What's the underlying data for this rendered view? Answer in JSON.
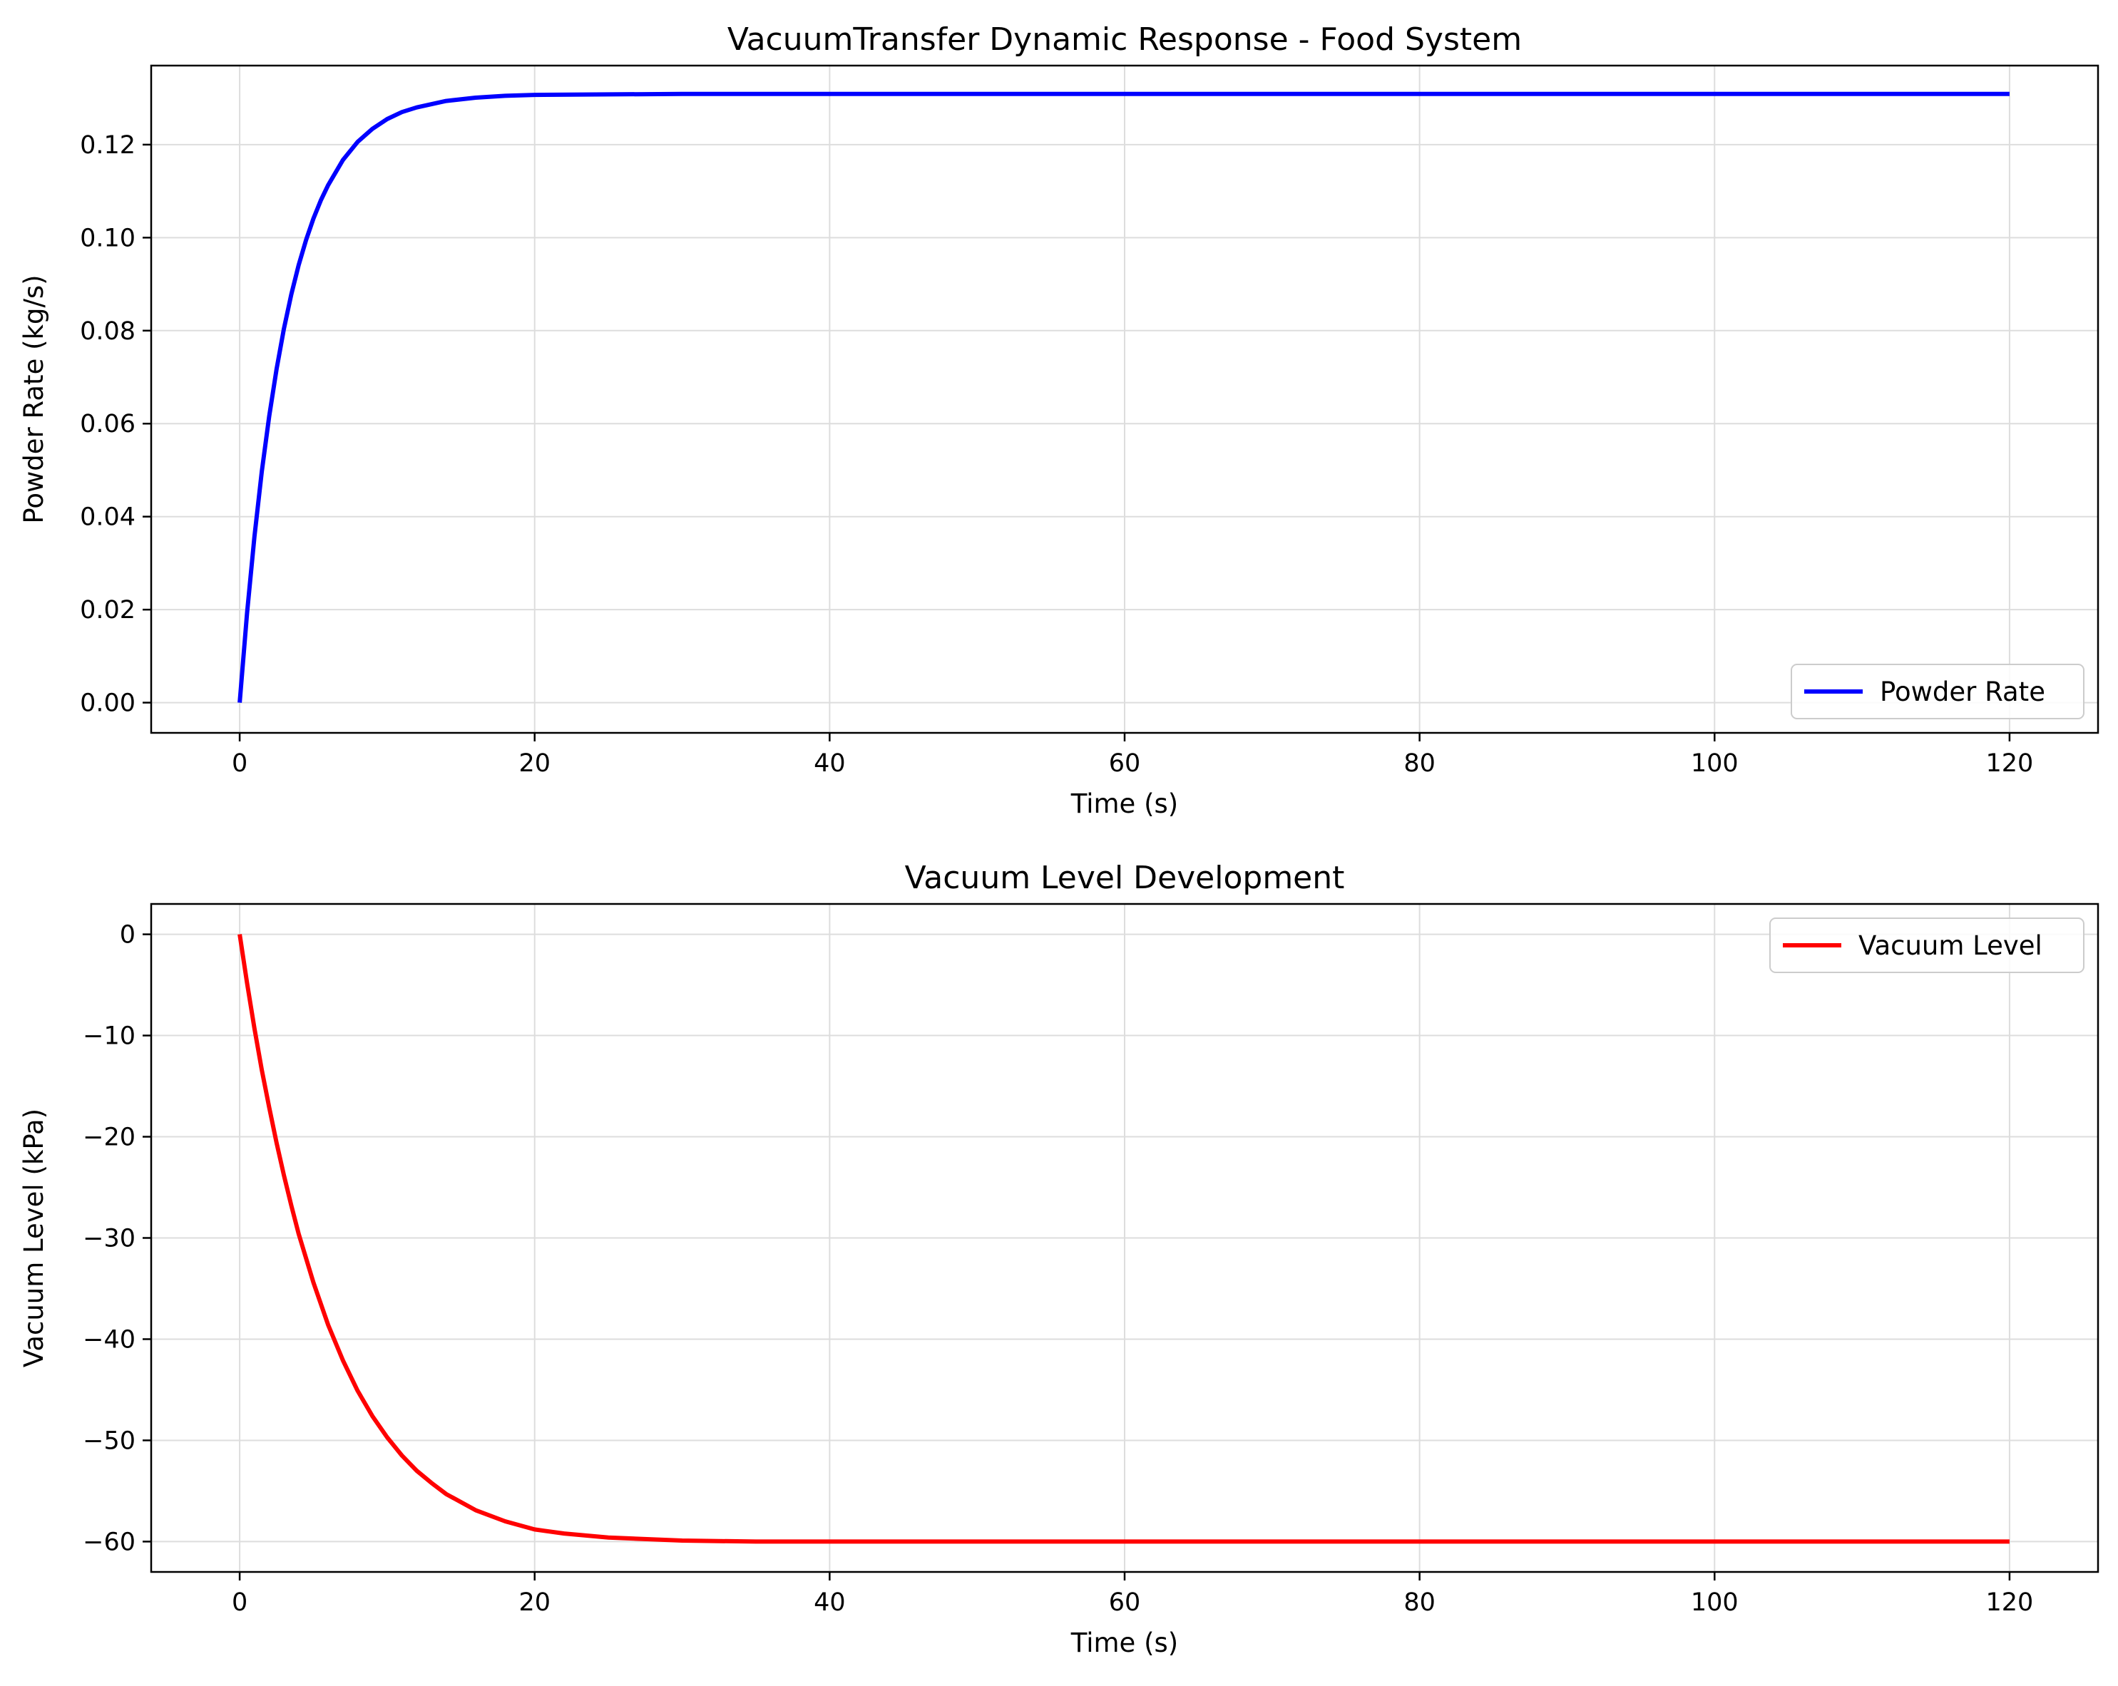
{
  "chart_data": [
    {
      "type": "line",
      "title": "VacuumTransfer Dynamic Response - Food System",
      "xlabel": "Time (s)",
      "ylabel": "Powder Rate (kg/s)",
      "xlim": [
        -6,
        126
      ],
      "ylim": [
        -0.0065,
        0.137
      ],
      "xticks": [
        0,
        20,
        40,
        60,
        80,
        100,
        120
      ],
      "xtick_labels": [
        "0",
        "20",
        "40",
        "60",
        "80",
        "100",
        "120"
      ],
      "yticks": [
        0,
        0.02,
        0.04,
        0.06,
        0.08,
        0.1,
        0.12
      ],
      "ytick_labels": [
        "0.00",
        "0.02",
        "0.04",
        "0.06",
        "0.08",
        "0.10",
        "0.12"
      ],
      "grid": true,
      "legend_position": "lower-right",
      "series": [
        {
          "name": "Powder Rate",
          "color": "#0000ff",
          "x": [
            0,
            0.5,
            1,
            1.5,
            2,
            2.5,
            3,
            3.5,
            4,
            4.5,
            5,
            5.5,
            6,
            7,
            8,
            9,
            10,
            11,
            12,
            14,
            16,
            18,
            20,
            25,
            30,
            40,
            60,
            80,
            100,
            120
          ],
          "y": [
            0,
            0.0192,
            0.0357,
            0.0497,
            0.0616,
            0.0717,
            0.0804,
            0.0878,
            0.0941,
            0.0995,
            0.1041,
            0.108,
            0.1113,
            0.1167,
            0.1206,
            0.1234,
            0.1255,
            0.127,
            0.128,
            0.1294,
            0.1301,
            0.1305,
            0.1307,
            0.1308,
            0.1309,
            0.1309,
            0.1309,
            0.1309,
            0.1309,
            0.1309
          ]
        }
      ]
    },
    {
      "type": "line",
      "title": "Vacuum Level Development",
      "xlabel": "Time (s)",
      "ylabel": "Vacuum Level (kPa)",
      "xlim": [
        -6,
        126
      ],
      "ylim": [
        -63,
        3
      ],
      "xticks": [
        0,
        20,
        40,
        60,
        80,
        100,
        120
      ],
      "xtick_labels": [
        "0",
        "20",
        "40",
        "60",
        "80",
        "100",
        "120"
      ],
      "yticks": [
        0,
        -10,
        -20,
        -30,
        -40,
        -50,
        -60
      ],
      "ytick_labels": [
        "0",
        "−10",
        "−20",
        "−30",
        "−40",
        "−50",
        "−60"
      ],
      "grid": true,
      "legend_position": "upper-right",
      "series": [
        {
          "name": "Vacuum Level",
          "color": "#ff0000",
          "x": [
            0,
            0.5,
            1,
            1.5,
            2,
            2.5,
            3,
            3.5,
            4,
            5,
            6,
            7,
            8,
            9,
            10,
            11,
            12,
            13,
            14,
            16,
            18,
            20,
            22,
            25,
            30,
            35,
            40,
            60,
            80,
            100,
            120
          ],
          "y": [
            0,
            -4.8,
            -9.3,
            -13.4,
            -17.1,
            -20.6,
            -23.8,
            -26.8,
            -29.6,
            -34.4,
            -38.6,
            -42.1,
            -45.1,
            -47.6,
            -49.7,
            -51.5,
            -53.0,
            -54.2,
            -55.3,
            -56.9,
            -58.0,
            -58.8,
            -59.2,
            -59.6,
            -59.9,
            -60.0,
            -60.0,
            -60.0,
            -60.0,
            -60.0,
            -60.0
          ]
        }
      ]
    }
  ]
}
